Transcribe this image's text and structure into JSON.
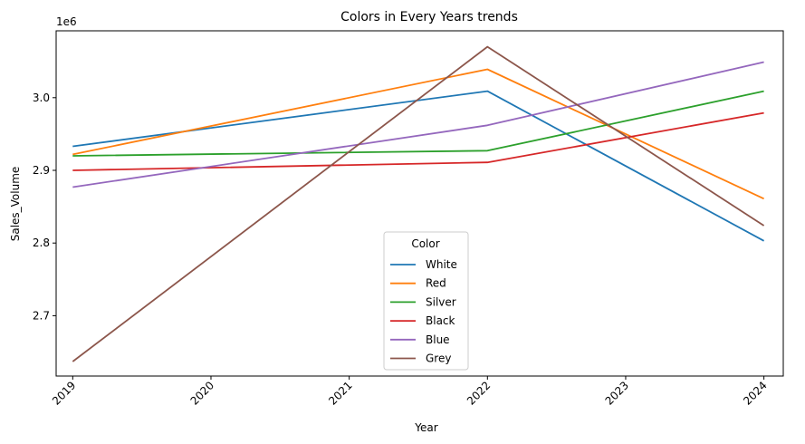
{
  "chart_data": {
    "type": "line",
    "title": "Colors in Every Years trends",
    "xlabel": "Year",
    "ylabel": "Sales_Volume",
    "y_scale_label": "1e6",
    "x": [
      2019,
      2020,
      2021,
      2022,
      2023,
      2024
    ],
    "x_tick_labels": [
      "2019",
      "2020",
      "2021",
      "2022",
      "2023",
      "2024"
    ],
    "y_ticks": [
      2.7,
      2.8,
      2.9,
      3.0
    ],
    "y_tick_labels": [
      "2.7",
      "2.8",
      "2.9",
      "3.0"
    ],
    "xlim": [
      2018.88,
      2024.14
    ],
    "ylim": [
      2.617,
      3.092
    ],
    "grid": false,
    "legend": {
      "title": "Color",
      "placement": "lower-center"
    },
    "series": [
      {
        "name": "White",
        "color": "#1f77b4",
        "x": [
          2019,
          2022,
          2024
        ],
        "values": [
          2.933,
          3.009,
          2.803
        ]
      },
      {
        "name": "Red",
        "color": "#ff7f0e",
        "x": [
          2019,
          2022,
          2024
        ],
        "values": [
          2.922,
          3.039,
          2.861
        ]
      },
      {
        "name": "Silver",
        "color": "#2ca02c",
        "x": [
          2019,
          2022,
          2024
        ],
        "values": [
          2.92,
          2.927,
          3.009
        ]
      },
      {
        "name": "Black",
        "color": "#d62728",
        "x": [
          2019,
          2022,
          2024
        ],
        "values": [
          2.9,
          2.911,
          2.979
        ]
      },
      {
        "name": "Blue",
        "color": "#9467bd",
        "x": [
          2019,
          2022,
          2024
        ],
        "values": [
          2.877,
          2.962,
          3.049
        ]
      },
      {
        "name": "Grey",
        "color": "#8c564b",
        "x": [
          2019,
          2022,
          2024
        ],
        "values": [
          2.637,
          3.07,
          2.824
        ]
      }
    ]
  }
}
